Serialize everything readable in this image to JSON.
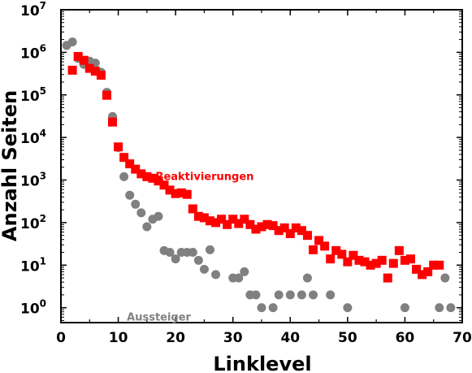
{
  "chart_data": {
    "type": "scatter",
    "xlabel": "Linklevel",
    "ylabel": "Anzahl Seiten",
    "xlim": [
      0,
      70
    ],
    "ylim_log10": [
      -0.35,
      7
    ],
    "y_scale": "log",
    "x_ticks": [
      {
        "value": 0,
        "label": "0"
      },
      {
        "value": 10,
        "label": "10"
      },
      {
        "value": 20,
        "label": "20"
      },
      {
        "value": 30,
        "label": "30"
      },
      {
        "value": 40,
        "label": "40"
      },
      {
        "value": 50,
        "label": "50"
      },
      {
        "value": 60,
        "label": "60"
      },
      {
        "value": 70,
        "label": "70"
      }
    ],
    "y_ticks": [
      {
        "exp": 0,
        "base": "10",
        "sup": "0"
      },
      {
        "exp": 1,
        "base": "10",
        "sup": "1"
      },
      {
        "exp": 2,
        "base": "10",
        "sup": "2"
      },
      {
        "exp": 3,
        "base": "10",
        "sup": "3"
      },
      {
        "exp": 4,
        "base": "10",
        "sup": "4"
      },
      {
        "exp": 5,
        "base": "10",
        "sup": "5"
      },
      {
        "exp": 6,
        "base": "10",
        "sup": "6"
      },
      {
        "exp": 7,
        "base": "10",
        "sup": "7"
      }
    ],
    "series": [
      {
        "name": "Aussteiger",
        "color": "#808080",
        "marker": "circle",
        "label_anchor": {
          "x": 11.5,
          "y": 0.5
        },
        "points": [
          [
            1,
            1450000
          ],
          [
            2,
            1750000
          ],
          [
            3,
            720000
          ],
          [
            4,
            520000
          ],
          [
            5,
            620000
          ],
          [
            6,
            560000
          ],
          [
            7,
            340000
          ],
          [
            8,
            115000
          ],
          [
            9,
            31000
          ],
          [
            10,
            5800
          ],
          [
            11,
            1200
          ],
          [
            12,
            440
          ],
          [
            13,
            270
          ],
          [
            14,
            170
          ],
          [
            15,
            80
          ],
          [
            16,
            120
          ],
          [
            17,
            140
          ],
          [
            18,
            22
          ],
          [
            19,
            20
          ],
          [
            20,
            14
          ],
          [
            21,
            20
          ],
          [
            22,
            20
          ],
          [
            23,
            20
          ],
          [
            24,
            13
          ],
          [
            25,
            8
          ],
          [
            26,
            23
          ],
          [
            27,
            6
          ],
          [
            30,
            5
          ],
          [
            31,
            5
          ],
          [
            32,
            7
          ],
          [
            33,
            2
          ],
          [
            34,
            2
          ],
          [
            35,
            1
          ],
          [
            37,
            1
          ],
          [
            38,
            2
          ],
          [
            40,
            2
          ],
          [
            42,
            2
          ],
          [
            43,
            5
          ],
          [
            44,
            2
          ],
          [
            47,
            2
          ],
          [
            50,
            1
          ],
          [
            60,
            1
          ],
          [
            66,
            1
          ],
          [
            67,
            5
          ],
          [
            68,
            1
          ]
        ]
      },
      {
        "name": "Reaktivierungen",
        "color": "#ff0000",
        "marker": "square",
        "label_anchor": {
          "x": 16.5,
          "y": 1000
        },
        "points": [
          [
            2,
            380000
          ],
          [
            3,
            800000
          ],
          [
            4,
            650000
          ],
          [
            5,
            420000
          ],
          [
            6,
            360000
          ],
          [
            7,
            290000
          ],
          [
            8,
            98000
          ],
          [
            9,
            23000
          ],
          [
            10,
            6000
          ],
          [
            11,
            3400
          ],
          [
            12,
            2400
          ],
          [
            13,
            1800
          ],
          [
            14,
            1400
          ],
          [
            15,
            1200
          ],
          [
            16,
            1100
          ],
          [
            17,
            950
          ],
          [
            18,
            760
          ],
          [
            19,
            580
          ],
          [
            20,
            480
          ],
          [
            21,
            500
          ],
          [
            22,
            460
          ],
          [
            23,
            210
          ],
          [
            24,
            140
          ],
          [
            25,
            130
          ],
          [
            26,
            110
          ],
          [
            27,
            100
          ],
          [
            28,
            120
          ],
          [
            29,
            90
          ],
          [
            30,
            120
          ],
          [
            31,
            95
          ],
          [
            32,
            120
          ],
          [
            33,
            90
          ],
          [
            34,
            70
          ],
          [
            35,
            80
          ],
          [
            36,
            90
          ],
          [
            37,
            85
          ],
          [
            38,
            65
          ],
          [
            39,
            75
          ],
          [
            40,
            55
          ],
          [
            41,
            75
          ],
          [
            42,
            65
          ],
          [
            43,
            50
          ],
          [
            44,
            23
          ],
          [
            45,
            38
          ],
          [
            46,
            28
          ],
          [
            47,
            14
          ],
          [
            48,
            22
          ],
          [
            49,
            18
          ],
          [
            50,
            12
          ],
          [
            51,
            17
          ],
          [
            52,
            13
          ],
          [
            53,
            12
          ],
          [
            54,
            10
          ],
          [
            55,
            11
          ],
          [
            56,
            13
          ],
          [
            57,
            5
          ],
          [
            58,
            11
          ],
          [
            59,
            22
          ],
          [
            60,
            13
          ],
          [
            61,
            14
          ],
          [
            62,
            8
          ],
          [
            63,
            6
          ],
          [
            64,
            7
          ],
          [
            65,
            10
          ],
          [
            66,
            10
          ]
        ]
      }
    ]
  }
}
